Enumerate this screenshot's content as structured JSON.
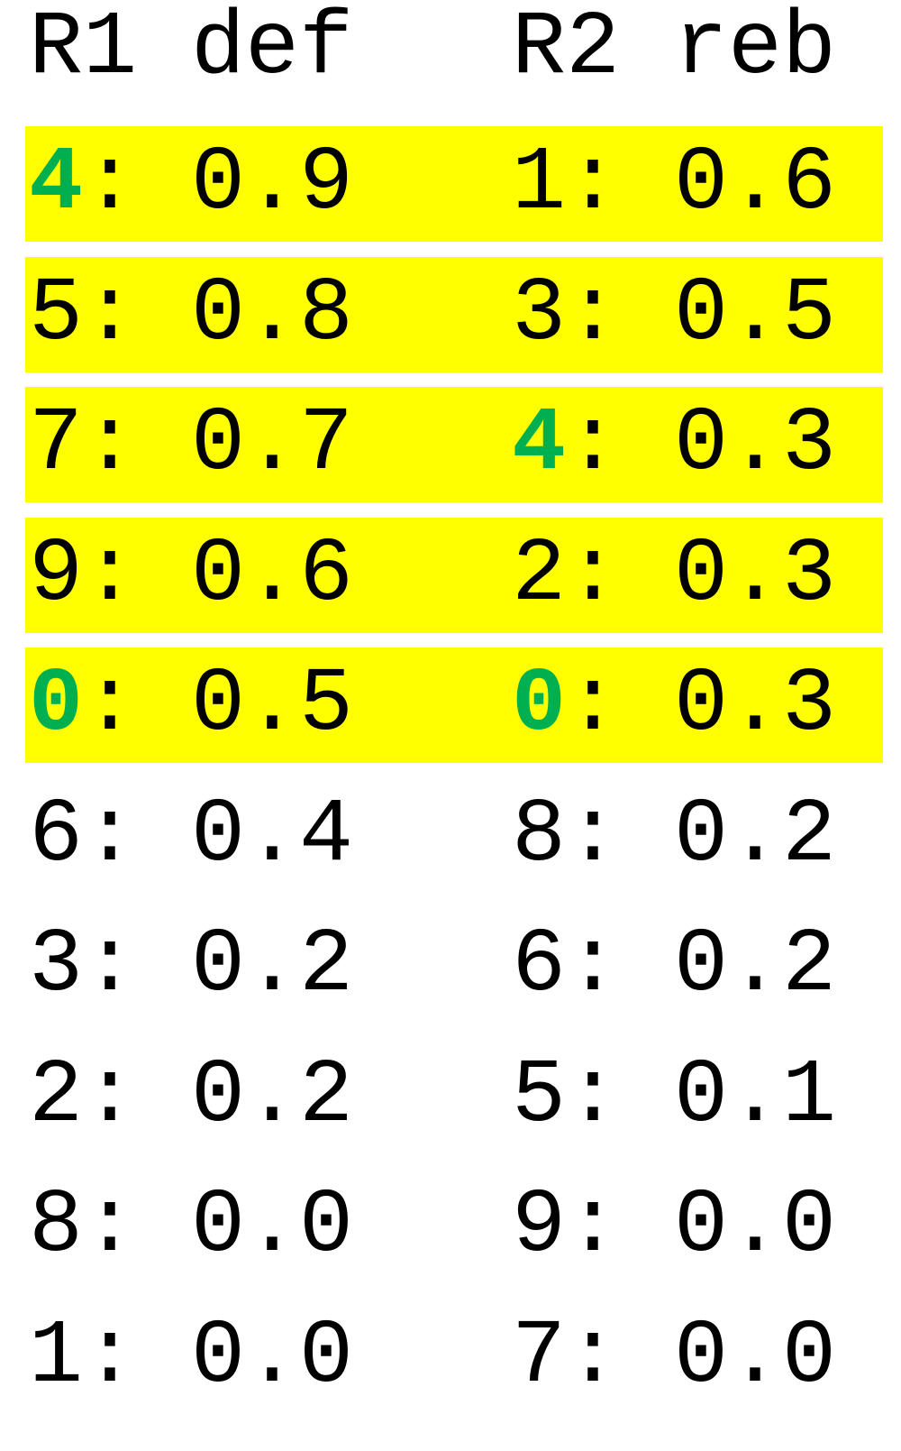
{
  "header": {
    "left": "R1 def",
    "right": "R2 reb"
  },
  "colors": {
    "highlight": "#ffff00",
    "match": "#00b050",
    "text": "#000000"
  },
  "rows": [
    {
      "highlighted": true,
      "l_key": "4",
      "l_key_match": true,
      "l_val": ": 0.9",
      "r_key": "1",
      "r_key_match": false,
      "r_val": ": 0.6"
    },
    {
      "highlighted": true,
      "l_key": "5",
      "l_key_match": false,
      "l_val": ": 0.8",
      "r_key": "3",
      "r_key_match": false,
      "r_val": ": 0.5"
    },
    {
      "highlighted": true,
      "l_key": "7",
      "l_key_match": false,
      "l_val": ": 0.7",
      "r_key": "4",
      "r_key_match": true,
      "r_val": ": 0.3"
    },
    {
      "highlighted": true,
      "l_key": "9",
      "l_key_match": false,
      "l_val": ": 0.6",
      "r_key": "2",
      "r_key_match": false,
      "r_val": ": 0.3"
    },
    {
      "highlighted": true,
      "l_key": "0",
      "l_key_match": true,
      "l_val": ": 0.5",
      "r_key": "0",
      "r_key_match": true,
      "r_val": ": 0.3"
    },
    {
      "highlighted": false,
      "l_key": "6",
      "l_key_match": false,
      "l_val": ": 0.4",
      "r_key": "8",
      "r_key_match": false,
      "r_val": ": 0.2"
    },
    {
      "highlighted": false,
      "l_key": "3",
      "l_key_match": false,
      "l_val": ": 0.2",
      "r_key": "6",
      "r_key_match": false,
      "r_val": ": 0.2"
    },
    {
      "highlighted": false,
      "l_key": "2",
      "l_key_match": false,
      "l_val": ": 0.2",
      "r_key": "5",
      "r_key_match": false,
      "r_val": ": 0.1"
    },
    {
      "highlighted": false,
      "l_key": "8",
      "l_key_match": false,
      "l_val": ": 0.0",
      "r_key": "9",
      "r_key_match": false,
      "r_val": ": 0.0"
    },
    {
      "highlighted": false,
      "l_key": "1",
      "l_key_match": false,
      "l_val": ": 0.0",
      "r_key": "7",
      "r_key_match": false,
      "r_val": ": 0.0"
    }
  ]
}
